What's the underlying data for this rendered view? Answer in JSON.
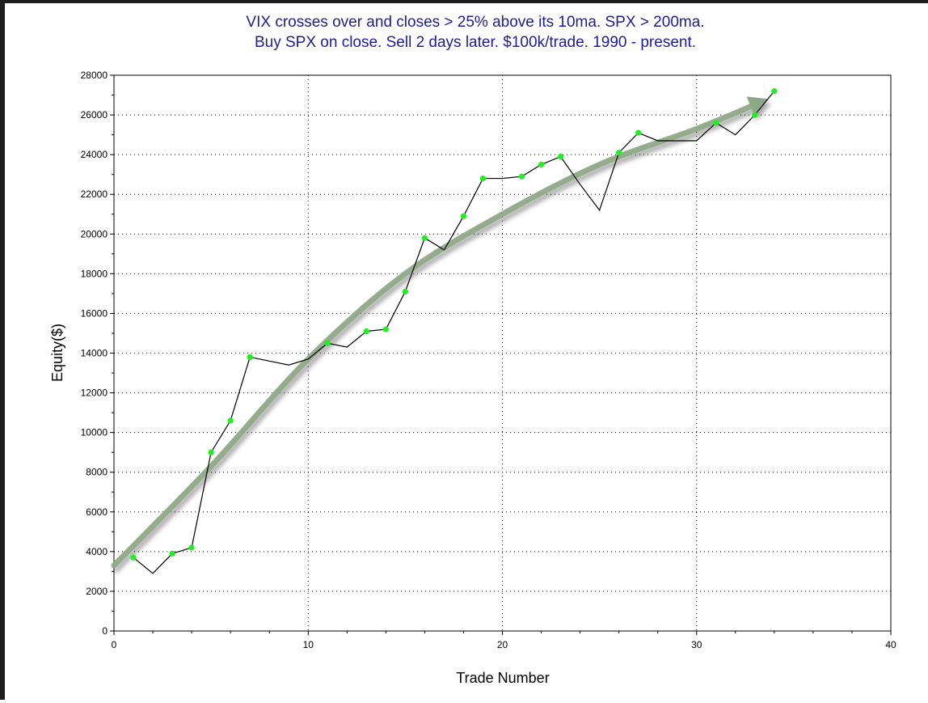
{
  "chart_data": {
    "type": "line",
    "title": [
      "VIX crosses over and closes > 25% above its 10ma. SPX > 200ma.",
      "Buy SPX on close. Sell 2 days later. $100k/trade. 1990 - present."
    ],
    "xlabel": "Trade Number",
    "ylabel": "Equity($)",
    "xlim": [
      0,
      40
    ],
    "ylim": [
      0,
      28000
    ],
    "xticks": [
      0,
      10,
      20,
      30,
      40
    ],
    "yticks": [
      0,
      2000,
      4000,
      6000,
      8000,
      10000,
      12000,
      14000,
      16000,
      18000,
      20000,
      22000,
      24000,
      26000,
      28000
    ],
    "grid": true,
    "series": [
      {
        "color": "#000000",
        "marker_color": "#22ee22",
        "x": [
          1,
          2,
          3,
          4,
          5,
          6,
          7,
          8,
          9,
          10,
          11,
          12,
          13,
          14,
          15,
          16,
          17,
          18,
          19,
          20,
          21,
          22,
          23,
          24,
          25,
          26,
          27,
          28,
          29,
          30,
          31,
          32,
          33,
          34
        ],
        "y": [
          3700,
          2900,
          3900,
          4200,
          9000,
          10600,
          13800,
          13600,
          13400,
          13700,
          14500,
          14300,
          15100,
          15200,
          17100,
          19800,
          19200,
          20900,
          22800,
          22800,
          22900,
          23500,
          23900,
          22500,
          21200,
          24100,
          25100,
          24700,
          24700,
          24700,
          25600,
          25000,
          26000,
          27200
        ],
        "markers": [
          1,
          3,
          4,
          5,
          6,
          7,
          11,
          13,
          14,
          15,
          16,
          18,
          19,
          21,
          22,
          23,
          26,
          27,
          31,
          33,
          34
        ]
      }
    ],
    "annotations": [
      {
        "type": "arrow",
        "color": "#8fa888",
        "x": [
          0,
          5,
          10,
          15,
          20,
          25,
          30,
          33.2
        ],
        "y": [
          3300,
          8300,
          13700,
          18000,
          21000,
          23500,
          25300,
          26600
        ]
      }
    ]
  }
}
